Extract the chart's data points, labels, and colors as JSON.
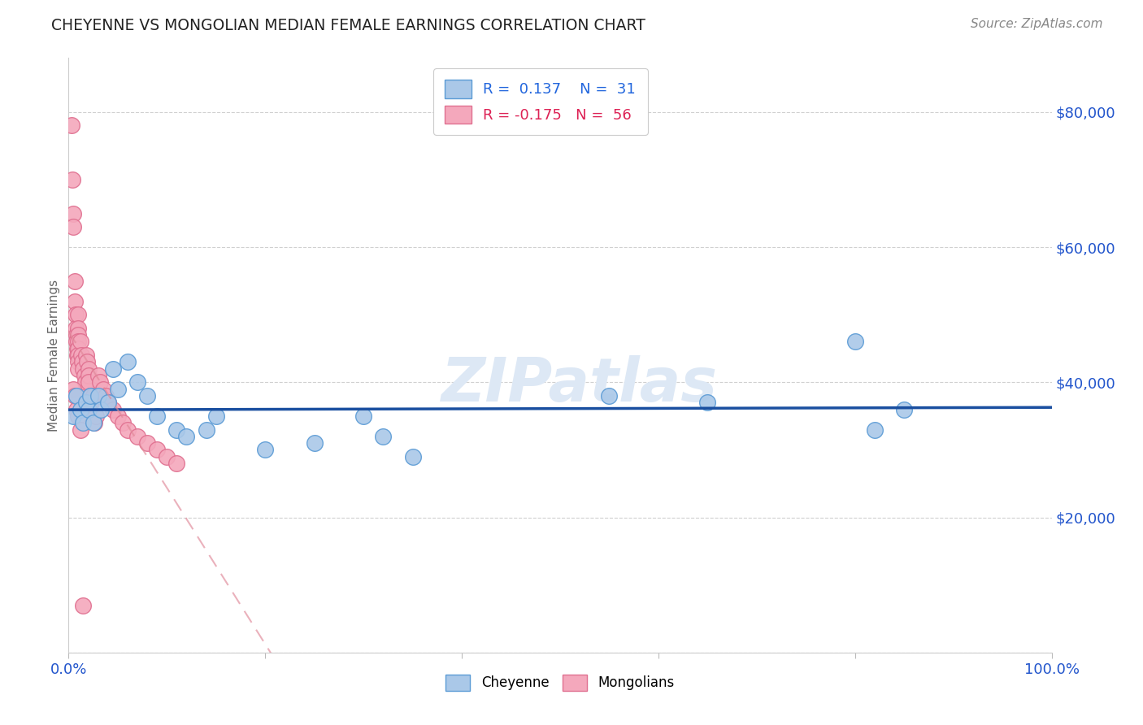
{
  "title": "CHEYENNE VS MONGOLIAN MEDIAN FEMALE EARNINGS CORRELATION CHART",
  "source": "Source: ZipAtlas.com",
  "ylabel": "Median Female Earnings",
  "xlim": [
    0.0,
    1.0
  ],
  "ylim": [
    0,
    88000
  ],
  "yticks": [
    0,
    20000,
    40000,
    60000,
    80000
  ],
  "ytick_labels": [
    "",
    "$20,000",
    "$40,000",
    "$60,000",
    "$80,000"
  ],
  "title_color": "#222222",
  "source_color": "#888888",
  "cheyenne_color": "#aac8e8",
  "mongolian_color": "#f4a8bc",
  "cheyenne_edge": "#5b9bd5",
  "mongolian_edge": "#e07090",
  "blue_line_color": "#1a4fa0",
  "pink_line_color": "#e08898",
  "grid_color": "#d0d0d0",
  "watermark_color": "#dde8f5",
  "R_cheyenne": 0.137,
  "N_cheyenne": 31,
  "R_mongolian": -0.175,
  "N_mongolian": 56,
  "cheyenne_x": [
    0.005,
    0.008,
    0.012,
    0.015,
    0.018,
    0.02,
    0.022,
    0.025,
    0.03,
    0.033,
    0.04,
    0.045,
    0.05,
    0.06,
    0.07,
    0.08,
    0.09,
    0.11,
    0.12,
    0.14,
    0.15,
    0.2,
    0.25,
    0.3,
    0.32,
    0.35,
    0.55,
    0.65,
    0.8,
    0.82,
    0.85
  ],
  "cheyenne_y": [
    35000,
    38000,
    36000,
    34000,
    37000,
    36000,
    38000,
    34000,
    38000,
    36000,
    37000,
    42000,
    39000,
    43000,
    40000,
    38000,
    35000,
    33000,
    32000,
    33000,
    35000,
    30000,
    31000,
    35000,
    32000,
    29000,
    38000,
    37000,
    46000,
    33000,
    36000
  ],
  "mongolian_x": [
    0.003,
    0.004,
    0.005,
    0.005,
    0.006,
    0.006,
    0.007,
    0.007,
    0.008,
    0.008,
    0.009,
    0.009,
    0.01,
    0.01,
    0.01,
    0.01,
    0.01,
    0.01,
    0.01,
    0.01,
    0.012,
    0.013,
    0.014,
    0.015,
    0.016,
    0.017,
    0.018,
    0.019,
    0.02,
    0.02,
    0.02,
    0.022,
    0.023,
    0.025,
    0.026,
    0.028,
    0.03,
    0.032,
    0.035,
    0.038,
    0.04,
    0.045,
    0.05,
    0.055,
    0.06,
    0.07,
    0.08,
    0.09,
    0.1,
    0.11,
    0.005,
    0.006,
    0.008,
    0.01,
    0.012,
    0.015
  ],
  "mongolian_y": [
    78000,
    70000,
    65000,
    63000,
    55000,
    52000,
    50000,
    48000,
    47000,
    46000,
    45000,
    44000,
    50000,
    48000,
    47000,
    46000,
    45000,
    44000,
    43000,
    42000,
    46000,
    44000,
    43000,
    42000,
    41000,
    40000,
    44000,
    43000,
    42000,
    41000,
    40000,
    38000,
    37000,
    38000,
    34000,
    35000,
    41000,
    40000,
    39000,
    38000,
    37000,
    36000,
    35000,
    34000,
    33000,
    32000,
    31000,
    30000,
    29000,
    28000,
    39000,
    38000,
    36000,
    35000,
    33000,
    7000
  ]
}
